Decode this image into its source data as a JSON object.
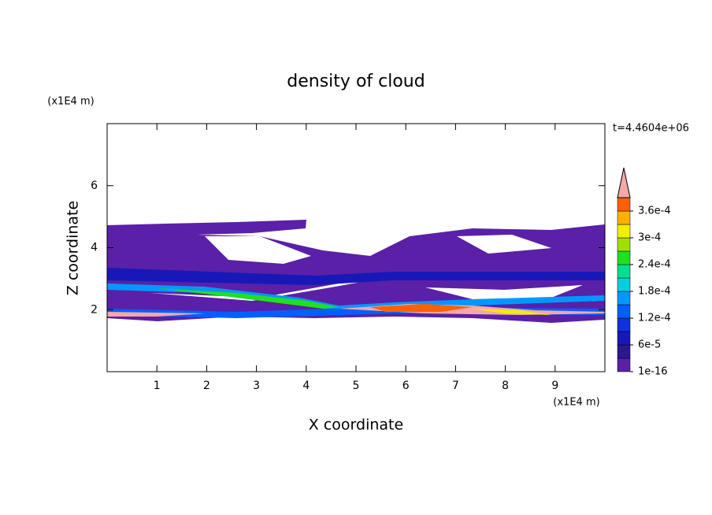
{
  "chart_data": {
    "type": "contour",
    "title": "density of cloud",
    "xlabel": "X coordinate",
    "ylabel": "Z coordinate",
    "x_unit": "(x1E4 m)",
    "y_unit": "(x1E4 m)",
    "annotation": "t=4.4604e+06",
    "xlim": [
      0,
      10
    ],
    "xticks": [
      1,
      2,
      3,
      4,
      5,
      6,
      7,
      8,
      9
    ],
    "ylim": [
      0,
      8
    ],
    "yticks": [
      2,
      4,
      6
    ],
    "colorbar": {
      "levels": [
        1e-16,
        3e-05,
        6e-05,
        9e-05,
        0.00012,
        0.00015,
        0.00018,
        0.00021,
        0.00024,
        0.00027,
        0.0003,
        0.00033,
        0.00036,
        0.00039
      ],
      "colors": [
        "#5a20a8",
        "#2a1890",
        "#1818b8",
        "#1030e0",
        "#0060ff",
        "#0098ff",
        "#00d0e0",
        "#00e090",
        "#20e020",
        "#a0e000",
        "#f0f000",
        "#ffb000",
        "#ff6000"
      ],
      "extend_color": "#f4a8a8",
      "ticks": [
        {
          "value": 1e-16,
          "label": "1e-16"
        },
        {
          "value": 6e-05,
          "label": "6e-5"
        },
        {
          "value": 0.00012,
          "label": "1.2e-4"
        },
        {
          "value": 0.00018,
          "label": "1.8e-4"
        },
        {
          "value": 0.00024,
          "label": "2.4e-4"
        },
        {
          "value": 0.0003,
          "label": "3e-4"
        },
        {
          "value": 0.00036,
          "label": "3.6e-4"
        }
      ]
    }
  }
}
